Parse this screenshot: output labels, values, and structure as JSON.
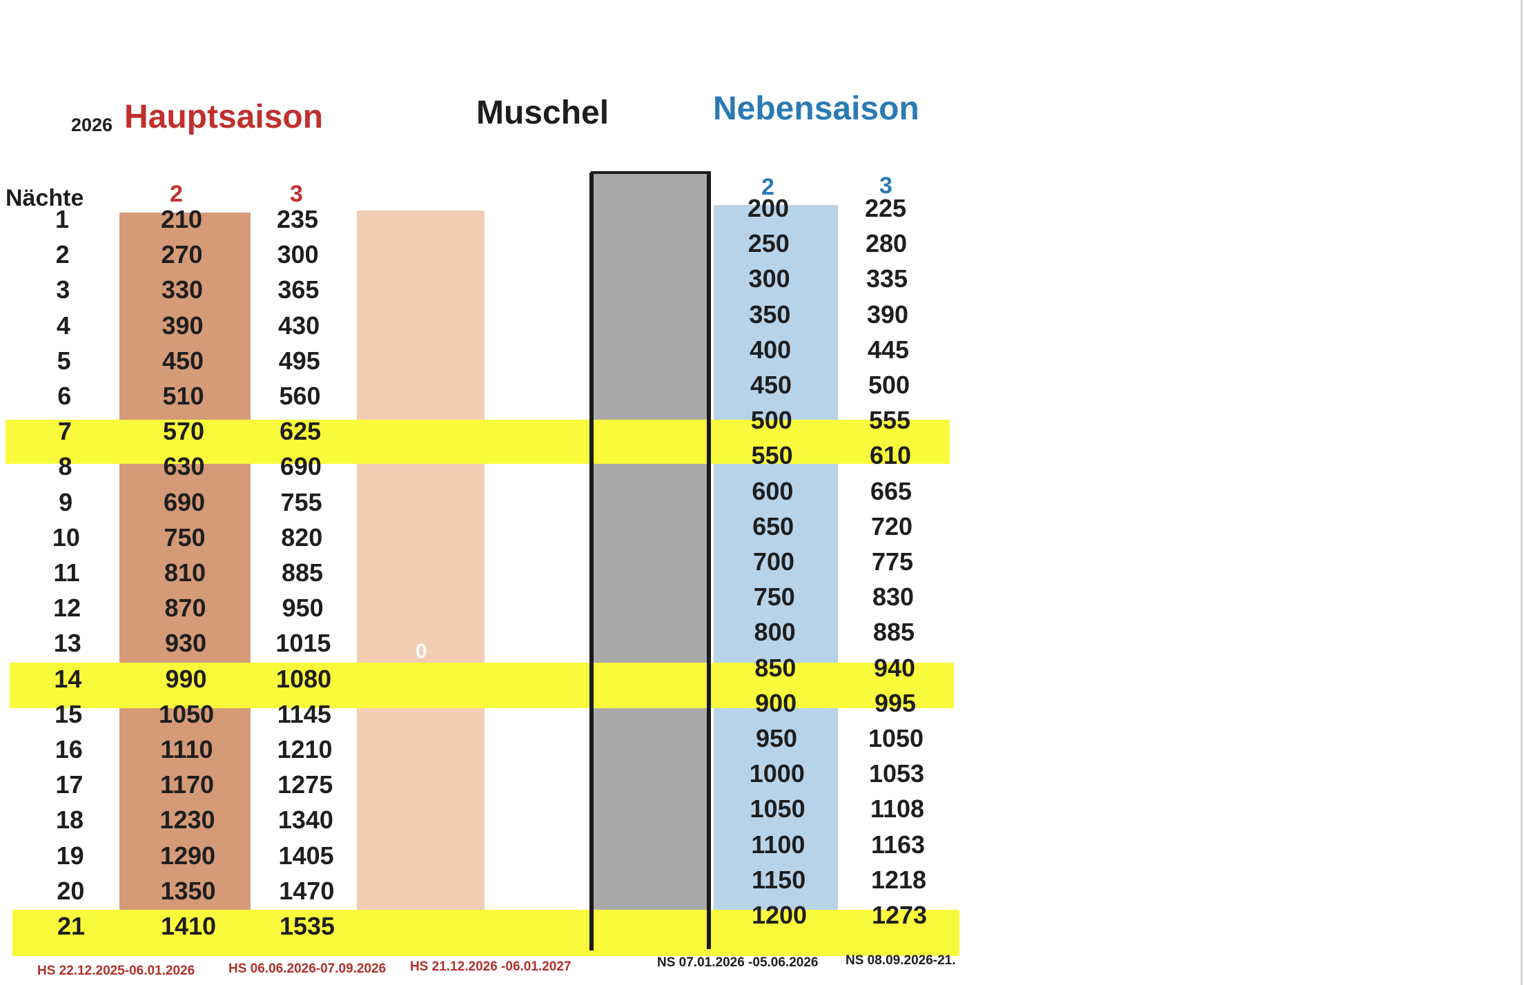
{
  "header": {
    "year": "2026",
    "hauptsaison": "Hauptsaison",
    "muschel": "Muschel",
    "nebensaison": "Nebensaison"
  },
  "columns": {
    "naechte": "Nächte",
    "hs_2": "2",
    "hs_3": "3",
    "ns_2": "2",
    "ns_3": "3"
  },
  "muschel_value": "0",
  "rows": [
    {
      "n": "1",
      "hs2": "210",
      "hs3": "235",
      "ns2": "200",
      "ns3": "225",
      "highlight": false
    },
    {
      "n": "2",
      "hs2": "270",
      "hs3": "300",
      "ns2": "250",
      "ns3": "280",
      "highlight": false
    },
    {
      "n": "3",
      "hs2": "330",
      "hs3": "365",
      "ns2": "300",
      "ns3": "335",
      "highlight": false
    },
    {
      "n": "4",
      "hs2": "390",
      "hs3": "430",
      "ns2": "350",
      "ns3": "390",
      "highlight": false
    },
    {
      "n": "5",
      "hs2": "450",
      "hs3": "495",
      "ns2": "400",
      "ns3": "445",
      "highlight": false
    },
    {
      "n": "6",
      "hs2": "510",
      "hs3": "560",
      "ns2": "450",
      "ns3": "500",
      "highlight": false
    },
    {
      "n": "7",
      "hs2": "570",
      "hs3": "625",
      "ns2": "500",
      "ns3": "555",
      "highlight": true
    },
    {
      "n": "8",
      "hs2": "630",
      "hs3": "690",
      "ns2": "550",
      "ns3": "610",
      "highlight": false
    },
    {
      "n": "9",
      "hs2": "690",
      "hs3": "755",
      "ns2": "600",
      "ns3": "665",
      "highlight": false
    },
    {
      "n": "10",
      "hs2": "750",
      "hs3": "820",
      "ns2": "650",
      "ns3": "720",
      "highlight": false
    },
    {
      "n": "11",
      "hs2": "810",
      "hs3": "885",
      "ns2": "700",
      "ns3": "775",
      "highlight": false
    },
    {
      "n": "12",
      "hs2": "870",
      "hs3": "950",
      "ns2": "750",
      "ns3": "830",
      "highlight": false
    },
    {
      "n": "13",
      "hs2": "930",
      "hs3": "1015",
      "ns2": "800",
      "ns3": "885",
      "highlight": false
    },
    {
      "n": "14",
      "hs2": "990",
      "hs3": "1080",
      "ns2": "850",
      "ns3": "940",
      "highlight": true
    },
    {
      "n": "15",
      "hs2": "1050",
      "hs3": "1145",
      "ns2": "900",
      "ns3": "995",
      "highlight": false
    },
    {
      "n": "16",
      "hs2": "1110",
      "hs3": "1210",
      "ns2": "950",
      "ns3": "1050",
      "highlight": false
    },
    {
      "n": "17",
      "hs2": "1170",
      "hs3": "1275",
      "ns2": "1000",
      "ns3": "1053",
      "highlight": false
    },
    {
      "n": "18",
      "hs2": "1230",
      "hs3": "1340",
      "ns2": "1050",
      "ns3": "1108",
      "highlight": false
    },
    {
      "n": "19",
      "hs2": "1290",
      "hs3": "1405",
      "ns2": "1100",
      "ns3": "1163",
      "highlight": false
    },
    {
      "n": "20",
      "hs2": "1350",
      "hs3": "1470",
      "ns2": "1150",
      "ns3": "1218",
      "highlight": false
    },
    {
      "n": "21",
      "hs2": "1410",
      "hs3": "1535",
      "ns2": "1200",
      "ns3": "1273",
      "highlight": true
    }
  ],
  "footer": {
    "hs1": "HS  22.12.2025-06.01.2026",
    "hs2": "HS 06.06.2026-07.09.2026",
    "hs3": "HS 21.12.2026 -06.01.2027",
    "ns1": "NS 07.01.2026 -05.06.2026",
    "ns2": "NS 08.09.2026-21."
  },
  "colors": {
    "hs_column": "#d59a78",
    "muschel_column": "#f1cdb4",
    "gray_column": "#a9a9a9",
    "ns_column": "#b7d3ea",
    "highlight": "#fafa3c",
    "red_text": "#c0302d",
    "blue_text": "#2a7ab3"
  }
}
